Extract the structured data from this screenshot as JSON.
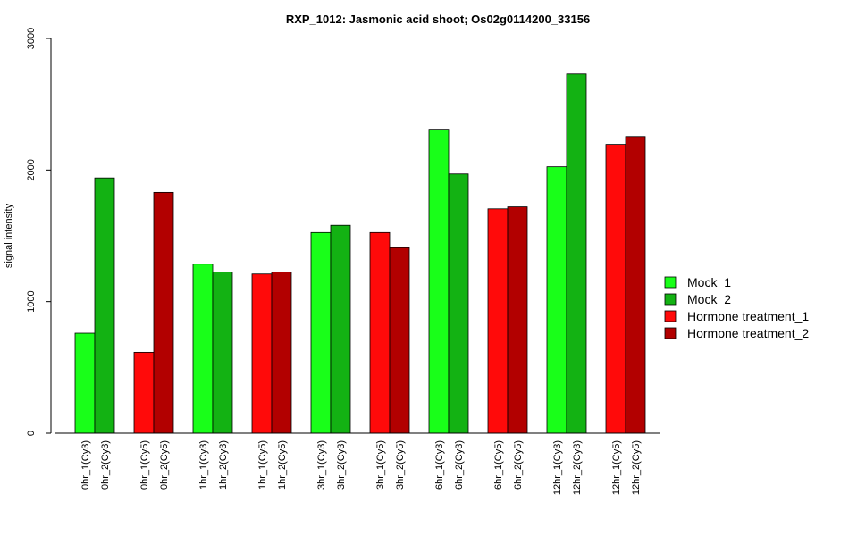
{
  "chart_data": {
    "type": "bar",
    "title": "RXP_1012: Jasmonic acid shoot; Os02g0114200_33156",
    "xlabel": "",
    "ylabel": "signal intensity",
    "ylim": [
      0,
      3000
    ],
    "yticks": [
      0,
      1000,
      2000,
      3000
    ],
    "grid": false,
    "legend_position": "right",
    "legend": [
      {
        "name": "Mock_1",
        "color": "#19ff19"
      },
      {
        "name": "Mock_2",
        "color": "#13b213"
      },
      {
        "name": "Hormone treatment_1",
        "color": "#ff0a0a"
      },
      {
        "name": "Hormone treatment_2",
        "color": "#b20000"
      }
    ],
    "groups": [
      {
        "bars": [
          {
            "label": "0hr_1(Cy3)",
            "value": 760,
            "color": "#19ff19"
          },
          {
            "label": "0hr_2(Cy3)",
            "value": 1940,
            "color": "#13b213"
          }
        ]
      },
      {
        "bars": [
          {
            "label": "0hr_1(Cy5)",
            "value": 615,
            "color": "#ff0a0a"
          },
          {
            "label": "0hr_2(Cy5)",
            "value": 1830,
            "color": "#b20000"
          }
        ]
      },
      {
        "bars": [
          {
            "label": "1hr_1(Cy3)",
            "value": 1285,
            "color": "#19ff19"
          },
          {
            "label": "1hr_2(Cy3)",
            "value": 1225,
            "color": "#13b213"
          }
        ]
      },
      {
        "bars": [
          {
            "label": "1hr_1(Cy5)",
            "value": 1210,
            "color": "#ff0a0a"
          },
          {
            "label": "1hr_2(Cy5)",
            "value": 1225,
            "color": "#b20000"
          }
        ]
      },
      {
        "bars": [
          {
            "label": "3hr_1(Cy3)",
            "value": 1525,
            "color": "#19ff19"
          },
          {
            "label": "3hr_2(Cy3)",
            "value": 1580,
            "color": "#13b213"
          }
        ]
      },
      {
        "bars": [
          {
            "label": "3hr_1(Cy5)",
            "value": 1525,
            "color": "#ff0a0a"
          },
          {
            "label": "3hr_2(Cy5)",
            "value": 1410,
            "color": "#b20000"
          }
        ]
      },
      {
        "bars": [
          {
            "label": "6hr_1(Cy3)",
            "value": 2310,
            "color": "#19ff19"
          },
          {
            "label": "6hr_2(Cy3)",
            "value": 1970,
            "color": "#13b213"
          }
        ]
      },
      {
        "bars": [
          {
            "label": "6hr_1(Cy5)",
            "value": 1705,
            "color": "#ff0a0a"
          },
          {
            "label": "6hr_2(Cy5)",
            "value": 1720,
            "color": "#b20000"
          }
        ]
      },
      {
        "bars": [
          {
            "label": "12hr_1(Cy3)",
            "value": 2025,
            "color": "#19ff19"
          },
          {
            "label": "12hr_2(Cy3)",
            "value": 2730,
            "color": "#13b213"
          }
        ]
      },
      {
        "bars": [
          {
            "label": "12hr_1(Cy5)",
            "value": 2195,
            "color": "#ff0a0a"
          },
          {
            "label": "12hr_2(Cy5)",
            "value": 2255,
            "color": "#b20000"
          }
        ]
      }
    ]
  }
}
